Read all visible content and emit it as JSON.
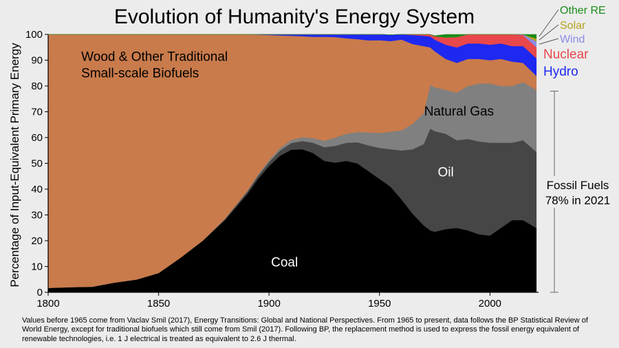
{
  "chart_data": {
    "type": "area",
    "stacked": true,
    "title": "Evolution of Humanity's Energy System",
    "ylabel": "Percentage of Input-Equivalent Primary Energy",
    "xlabel": "",
    "xlim": [
      1800,
      2022
    ],
    "ylim": [
      0,
      100
    ],
    "xticks": [
      1800,
      1850,
      1900,
      1950,
      2000
    ],
    "yticks": [
      0,
      10,
      20,
      30,
      40,
      50,
      60,
      70,
      80,
      90,
      100
    ],
    "x": [
      1800,
      1810,
      1820,
      1830,
      1840,
      1850,
      1860,
      1870,
      1880,
      1890,
      1895,
      1900,
      1905,
      1910,
      1915,
      1920,
      1925,
      1930,
      1935,
      1940,
      1945,
      1950,
      1955,
      1960,
      1965,
      1970,
      1973,
      1975,
      1980,
      1985,
      1990,
      1995,
      2000,
      2005,
      2010,
      2015,
      2021
    ],
    "series": [
      {
        "name": "Coal",
        "label": "Coal",
        "color": "#000000",
        "values": [
          1.7,
          2.0,
          2.2,
          3.8,
          5.0,
          7.5,
          13.5,
          20.0,
          28.0,
          38.0,
          44.0,
          49.0,
          53.0,
          55.3,
          55.5,
          54.0,
          51.0,
          50.3,
          51.0,
          50.0,
          47.0,
          44.0,
          41.0,
          36.0,
          30.5,
          26.0,
          24.0,
          23.5,
          24.5,
          25.0,
          24.0,
          22.5,
          22.0,
          25.0,
          28.0,
          28.0,
          25.0
        ]
      },
      {
        "name": "Oil",
        "label": "Oil",
        "color": "#464646",
        "values": [
          0,
          0,
          0,
          0,
          0,
          0,
          0,
          0.1,
          0.4,
          0.9,
          1.2,
          1.5,
          2.0,
          2.6,
          3.2,
          4.0,
          5.3,
          6.5,
          7.0,
          8.2,
          10.0,
          12.0,
          14.5,
          19.0,
          25.0,
          31.5,
          39.5,
          39.0,
          37.0,
          34.0,
          35.5,
          36.0,
          36.0,
          33.0,
          30.0,
          31.0,
          29.5
        ]
      },
      {
        "name": "Natural Gas",
        "label": "Natural Gas",
        "color": "#808080",
        "values": [
          0,
          0,
          0,
          0,
          0,
          0,
          0,
          0,
          0.1,
          0.3,
          0.5,
          0.8,
          1.0,
          1.2,
          1.5,
          1.8,
          2.5,
          3.2,
          3.5,
          4.0,
          5.0,
          5.8,
          6.8,
          7.8,
          9.8,
          12.0,
          17.0,
          17.0,
          17.0,
          18.5,
          20.5,
          22.5,
          23.0,
          22.0,
          22.0,
          22.5,
          24.0
        ]
      },
      {
        "name": "Wood & Other Traditional Small-scale Biofuels",
        "label": "Wood & Other Traditional\nSmall-scale Biofuels",
        "color": "#c97b4b",
        "values": [
          98.3,
          98.0,
          97.8,
          96.2,
          95.0,
          92.5,
          86.5,
          79.9,
          71.5,
          60.8,
          54.2,
          48.5,
          43.6,
          40.4,
          39.1,
          39.3,
          40.3,
          39.0,
          37.0,
          36.0,
          35.7,
          36.0,
          35.1,
          35.2,
          31.0,
          26.0,
          14.5,
          14.0,
          12.0,
          11.5,
          10.5,
          9.5,
          9.0,
          10.5,
          9.5,
          7.5,
          5.5
        ]
      },
      {
        "name": "Hydro",
        "label": "Hydro",
        "color": "#1e28f0",
        "values": [
          0,
          0,
          0,
          0,
          0,
          0,
          0,
          0,
          0,
          0,
          0.1,
          0.2,
          0.4,
          0.5,
          0.7,
          0.9,
          0.9,
          1.3,
          1.5,
          1.8,
          2.3,
          2.2,
          2.5,
          2.8,
          3.5,
          4.0,
          4.2,
          4.5,
          5.5,
          6.0,
          6.0,
          6.0,
          6.0,
          6.0,
          6.0,
          6.5,
          6.8
        ]
      },
      {
        "name": "Nuclear",
        "label": "Nuclear",
        "color": "#e8474b",
        "values": [
          0,
          0,
          0,
          0,
          0,
          0,
          0,
          0,
          0,
          0,
          0,
          0,
          0,
          0,
          0,
          0,
          0,
          0,
          0,
          0,
          0,
          0,
          0,
          0.1,
          0.2,
          0.5,
          0.8,
          1.3,
          2.8,
          4.0,
          4.8,
          5.5,
          5.8,
          5.5,
          4.5,
          4.3,
          4.3
        ]
      },
      {
        "name": "Wind",
        "label": "Wind",
        "color": "#8c8ce6",
        "values": [
          0,
          0,
          0,
          0,
          0,
          0,
          0,
          0,
          0,
          0,
          0,
          0,
          0,
          0,
          0,
          0,
          0,
          0,
          0,
          0,
          0,
          0,
          0,
          0,
          0,
          0,
          0,
          0,
          0,
          0,
          0,
          0,
          0.1,
          0.3,
          0.8,
          1.4,
          2.2
        ]
      },
      {
        "name": "Solar",
        "label": "Solar",
        "color": "#b4a01e",
        "values": [
          0,
          0,
          0,
          0,
          0,
          0,
          0,
          0,
          0,
          0,
          0,
          0,
          0,
          0,
          0,
          0,
          0,
          0,
          0,
          0,
          0,
          0,
          0,
          0,
          0,
          0,
          0,
          0,
          0,
          0,
          0,
          0,
          0,
          0,
          0.1,
          0.5,
          1.1
        ]
      },
      {
        "name": "Other RE",
        "label": "Other RE",
        "color": "#1a8c1a",
        "values": [
          0,
          0,
          0,
          0,
          0,
          0,
          0,
          0,
          0,
          0,
          0,
          0,
          0,
          0,
          0,
          0,
          0,
          0,
          0,
          0,
          0,
          0,
          0,
          0,
          0,
          0,
          0,
          0.2,
          1.2,
          1.0,
          0.7,
          0.5,
          0.1,
          0.7,
          0.1,
          0.8,
          1.6
        ]
      }
    ],
    "annotations": {
      "fossil_label": "Fossil Fuels\n78% in 2021",
      "fossil_range": [
        0,
        78
      ]
    },
    "footnote": "Values before 1965 come from Vaclav Smil (2017), Energy Transitions: Global and National Perspectives.  From 1965 to present, data follows the BP Statistical Review of World Energy, except for traditional biofuels which still come from Smil (2017).  Following BP, the replacement method is used to express the fossil energy equivalent of renewable technologies, i.e. 1 J electrical is treated as equivalent to 2.6 J thermal."
  }
}
